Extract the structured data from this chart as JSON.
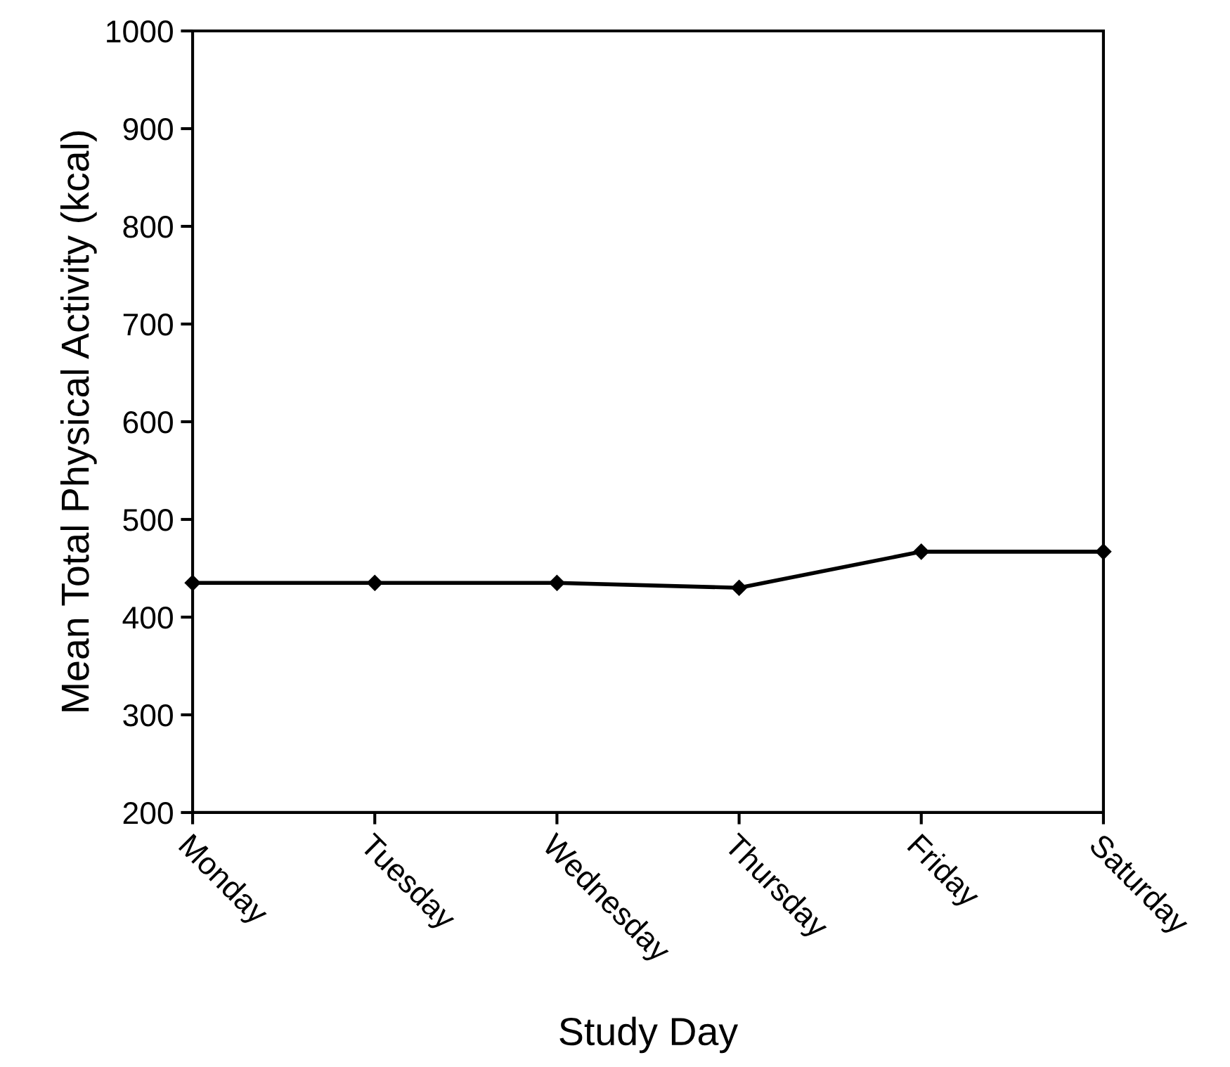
{
  "chart_data": {
    "type": "line",
    "xlabel": "Study Day",
    "ylabel": "Mean Total Physical Activity (kcal)",
    "categories": [
      "Monday",
      "Tuesday",
      "Wednesday",
      "Thursday",
      "Friday",
      "Saturday"
    ],
    "series": [
      {
        "color": "#000000",
        "values": [
          435,
          435,
          435,
          430,
          467,
          467
        ]
      }
    ],
    "ylim": [
      200,
      1000
    ],
    "yticks": [
      200,
      300,
      400,
      500,
      600,
      700,
      800,
      900,
      1000
    ],
    "marker": "diamond",
    "line_style": "solid",
    "grid": false,
    "legend": false
  }
}
